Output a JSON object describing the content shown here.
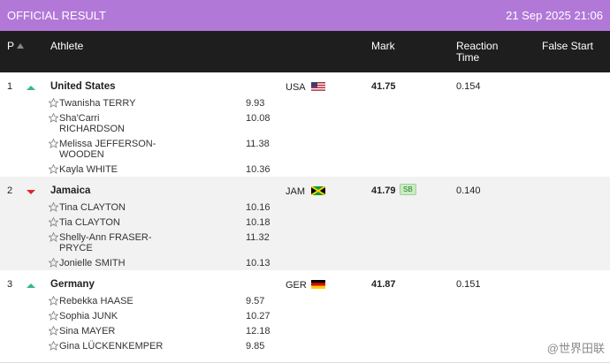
{
  "header": {
    "title": "OFFICIAL RESULT",
    "datetime": "21 Sep 2025 21:06"
  },
  "columns": {
    "position": "P",
    "athlete": "Athlete",
    "mark": "Mark",
    "reaction": "Reaction Time",
    "false_start": "False Start"
  },
  "rows": [
    {
      "position": "1",
      "team": "United States",
      "country": "USA",
      "mark": "41.75",
      "reaction": "0.154",
      "athletes": [
        {
          "name": "Twanisha TERRY",
          "split": "9.93"
        },
        {
          "name": "Sha'Carri RICHARDSON",
          "split": "10.08"
        },
        {
          "name": "Melissa JEFFERSON-WOODEN",
          "split": "11.38"
        },
        {
          "name": "Kayla WHITE",
          "split": "10.36"
        }
      ]
    },
    {
      "position": "2",
      "team": "Jamaica",
      "country": "JAM",
      "mark": "41.79",
      "badge": "SB",
      "reaction": "0.140",
      "athletes": [
        {
          "name": "Tina CLAYTON",
          "split": "10.16"
        },
        {
          "name": "Tia CLAYTON",
          "split": "10.18"
        },
        {
          "name": "Shelly-Ann FRASER-PRYCE",
          "split": "11.32"
        },
        {
          "name": "Jonielle SMITH",
          "split": "10.13"
        }
      ]
    },
    {
      "position": "3",
      "team": "Germany",
      "country": "GER",
      "mark": "41.87",
      "reaction": "0.151",
      "athletes": [
        {
          "name": "Rebekka HAASE",
          "split": "9.57"
        },
        {
          "name": "Sophia JUNK",
          "split": "10.27"
        },
        {
          "name": "Sina MAYER",
          "split": "12.18"
        },
        {
          "name": "Gina LÜCKENKEMPER",
          "split": "9.85"
        }
      ]
    }
  ],
  "watermark": "@世界田联"
}
